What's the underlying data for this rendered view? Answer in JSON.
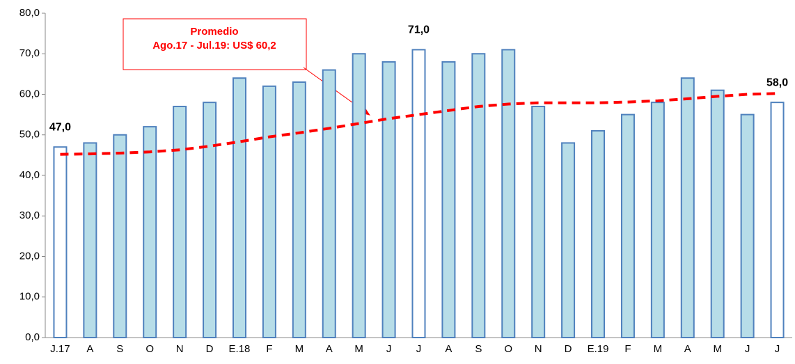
{
  "chart_data": {
    "type": "bar",
    "categories": [
      "J.17",
      "A",
      "S",
      "O",
      "N",
      "D",
      "E.18",
      "F",
      "M",
      "A",
      "M",
      "J",
      "J",
      "A",
      "S",
      "O",
      "N",
      "D",
      "E.19",
      "F",
      "M",
      "A",
      "M",
      "J",
      "J"
    ],
    "values": [
      47,
      48,
      50,
      52,
      57,
      58,
      64,
      62,
      63,
      66,
      70,
      68,
      71,
      68,
      70,
      71,
      57,
      48,
      51,
      55,
      58,
      64,
      61,
      55,
      58
    ],
    "value_labels": [
      "47,0",
      null,
      null,
      null,
      null,
      null,
      null,
      null,
      null,
      null,
      null,
      null,
      "71,0",
      null,
      null,
      null,
      null,
      null,
      null,
      null,
      null,
      null,
      null,
      null,
      "58,0"
    ],
    "colors": [
      "#ffffff",
      "#b7dde8",
      "#b7dde8",
      "#b7dde8",
      "#b7dde8",
      "#b7dde8",
      "#b7dde8",
      "#b7dde8",
      "#b7dde8",
      "#b7dde8",
      "#b7dde8",
      "#b7dde8",
      "#ffffff",
      "#b7dde8",
      "#b7dde8",
      "#b7dde8",
      "#b7dde8",
      "#b7dde8",
      "#b7dde8",
      "#b7dde8",
      "#b7dde8",
      "#b7dde8",
      "#b7dde8",
      "#b7dde8",
      "#ffffff"
    ],
    "edge_color": "#4f81bd",
    "trend": {
      "color": "#ff0000",
      "values": [
        45.2,
        45.3,
        45.5,
        45.8,
        46.3,
        47.2,
        48.3,
        49.5,
        50.5,
        51.6,
        52.8,
        54,
        55,
        56,
        57,
        57.6,
        57.9,
        57.9,
        57.9,
        58.1,
        58.4,
        58.9,
        59.5,
        60,
        60.2
      ]
    },
    "annotation": {
      "lines": [
        "Promedio",
        "Ago.17 - Jul.19: US$ 60,2"
      ],
      "color": "#ff0000"
    },
    "ylim": [
      0,
      80
    ],
    "yticks": [
      {
        "value": 0,
        "label": "0,0"
      },
      {
        "value": 10,
        "label": "10,0"
      },
      {
        "value": 20,
        "label": "20,0"
      },
      {
        "value": 30,
        "label": "30,0"
      },
      {
        "value": 40,
        "label": "40,0"
      },
      {
        "value": 50,
        "label": "50,0"
      },
      {
        "value": 60,
        "label": "60,0"
      },
      {
        "value": 70,
        "label": "70,0"
      },
      {
        "value": 80,
        "label": "80,0"
      }
    ],
    "grid": false
  }
}
